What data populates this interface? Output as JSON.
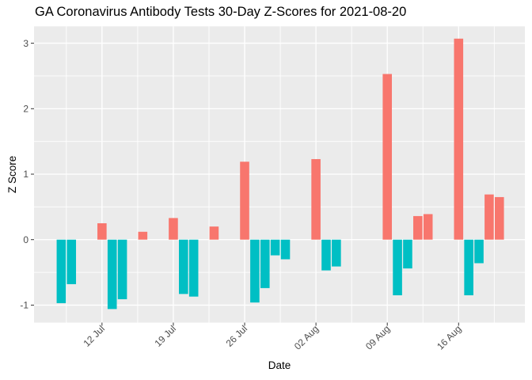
{
  "title": "GA Coronavirus Antibody Tests 30-Day Z-Scores for 2021-08-20",
  "chart_data": {
    "type": "bar",
    "title": "GA Coronavirus Antibody Tests 30-Day Z-Scores for 2021-08-20",
    "xlabel": "Date",
    "ylabel": "Z Score",
    "legend": "none",
    "grid": "ggplot-gray-panel-white-gridlines",
    "ylim": [
      -1.27,
      3.26
    ],
    "y_ticks": [
      {
        "value": -1,
        "label": "-1"
      },
      {
        "value": 0,
        "label": "0"
      },
      {
        "value": 1,
        "label": "1"
      },
      {
        "value": 2,
        "label": "2"
      },
      {
        "value": 3,
        "label": "3"
      }
    ],
    "y_minor_ticks": [
      -0.5,
      0.5,
      1.5,
      2.5
    ],
    "x_ticks": [
      {
        "day": 0,
        "label": "12 Jul"
      },
      {
        "day": 7,
        "label": "19 Jul"
      },
      {
        "day": 14,
        "label": "26 Jul"
      },
      {
        "day": 21,
        "label": "02 Aug"
      },
      {
        "day": 28,
        "label": "09 Aug"
      },
      {
        "day": 35,
        "label": "16 Aug"
      }
    ],
    "x_minor_tick_days": [
      -3.5,
      3.5,
      10.5,
      17.5,
      24.5,
      31.5,
      38.5
    ],
    "points": [
      {
        "date": "2021-07-08",
        "day": -4,
        "z": -0.97
      },
      {
        "date": "2021-07-09",
        "day": -3,
        "z": -0.68
      },
      {
        "date": "2021-07-12",
        "day": 0,
        "z": 0.25
      },
      {
        "date": "2021-07-13",
        "day": 1,
        "z": -1.06
      },
      {
        "date": "2021-07-14",
        "day": 2,
        "z": -0.91
      },
      {
        "date": "2021-07-16",
        "day": 4,
        "z": 0.12
      },
      {
        "date": "2021-07-19",
        "day": 7,
        "z": 0.33
      },
      {
        "date": "2021-07-20",
        "day": 8,
        "z": -0.83
      },
      {
        "date": "2021-07-21",
        "day": 9,
        "z": -0.87
      },
      {
        "date": "2021-07-23",
        "day": 11,
        "z": 0.2
      },
      {
        "date": "2021-07-26",
        "day": 14,
        "z": 1.19
      },
      {
        "date": "2021-07-27",
        "day": 15,
        "z": -0.96
      },
      {
        "date": "2021-07-28",
        "day": 16,
        "z": -0.74
      },
      {
        "date": "2021-07-29",
        "day": 17,
        "z": -0.24
      },
      {
        "date": "2021-07-30",
        "day": 18,
        "z": -0.3
      },
      {
        "date": "2021-08-02",
        "day": 21,
        "z": 1.23
      },
      {
        "date": "2021-08-03",
        "day": 22,
        "z": -0.47
      },
      {
        "date": "2021-08-04",
        "day": 23,
        "z": -0.41
      },
      {
        "date": "2021-08-09",
        "day": 28,
        "z": 2.53
      },
      {
        "date": "2021-08-10",
        "day": 29,
        "z": -0.85
      },
      {
        "date": "2021-08-11",
        "day": 30,
        "z": -0.44
      },
      {
        "date": "2021-08-12",
        "day": 31,
        "z": 0.36
      },
      {
        "date": "2021-08-13",
        "day": 32,
        "z": 0.39
      },
      {
        "date": "2021-08-16",
        "day": 35,
        "z": 3.07
      },
      {
        "date": "2021-08-17",
        "day": 36,
        "z": -0.85
      },
      {
        "date": "2021-08-18",
        "day": 37,
        "z": -0.36
      },
      {
        "date": "2021-08-19",
        "day": 38,
        "z": 0.69
      },
      {
        "date": "2021-08-20",
        "day": 39,
        "z": 0.65
      }
    ],
    "colors": {
      "positive_bar": "#F8766D",
      "negative_bar": "#00BFC4",
      "panel_background": "#EBEBEB",
      "gridline": "#FFFFFF",
      "tick_label_text": "#4D4D4D",
      "tick_mark": "#333333",
      "axis_title_text": "#000000",
      "title_text": "#000000",
      "figure_background": "#FFFFFF"
    }
  }
}
